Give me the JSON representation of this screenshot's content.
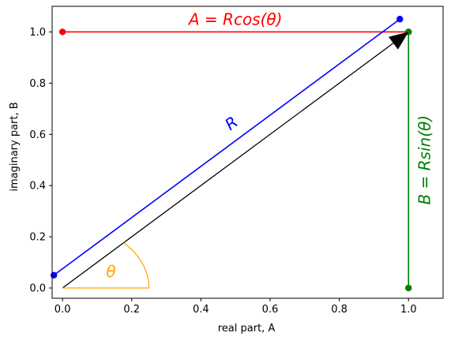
{
  "chart_data": {
    "type": "line",
    "title": "",
    "xlabel": "real part, A",
    "ylabel": "imaginary part, B",
    "xlim": [
      -0.03,
      1.1
    ],
    "ylim": [
      -0.04,
      1.1
    ],
    "x_ticks": [
      "0.0",
      "0.2",
      "0.4",
      "0.6",
      "0.8",
      "1.0"
    ],
    "x_tick_values": [
      0.0,
      0.2,
      0.4,
      0.6,
      0.8,
      1.0
    ],
    "y_ticks": [
      "0.0",
      "0.2",
      "0.4",
      "0.6",
      "0.8",
      "1.0"
    ],
    "y_tick_values": [
      0.0,
      0.2,
      0.4,
      0.6,
      0.8,
      1.0
    ],
    "grid": false,
    "series": [
      {
        "name": "",
        "color": "#ff0000",
        "x": [
          0.0,
          1.0
        ],
        "y": [
          1.0,
          1.0
        ],
        "markers": true
      },
      {
        "name": "",
        "color": "#0000ff",
        "x": [
          -0.025,
          0.975
        ],
        "y": [
          0.05,
          1.05
        ],
        "markers": true
      },
      {
        "name": "",
        "color": "#008000",
        "x": [
          1.0,
          1.0
        ],
        "y": [
          0.0,
          1.0
        ],
        "markers": true
      }
    ],
    "arrow": {
      "color": "#000000",
      "from": [
        0.0,
        0.0
      ],
      "to": [
        1.0,
        1.0
      ]
    },
    "angle_arc": {
      "color": "#ffa500",
      "radius": 0.25,
      "theta_deg": 45
    },
    "annotations": [
      {
        "text": "A = Rcos(θ)",
        "color": "#ff0000",
        "x": 0.5,
        "y": 1.045,
        "rotation": 0
      },
      {
        "text": "R",
        "color": "#0000ff",
        "x": 0.49,
        "y": 0.64,
        "rotation": -37
      },
      {
        "text": "B = Rsin(θ)",
        "color": "#008000",
        "x": 1.05,
        "y": 0.5,
        "rotation": -90
      },
      {
        "text": "θ",
        "color": "#ffa500",
        "x": 0.14,
        "y": 0.06,
        "rotation": 0
      }
    ]
  }
}
